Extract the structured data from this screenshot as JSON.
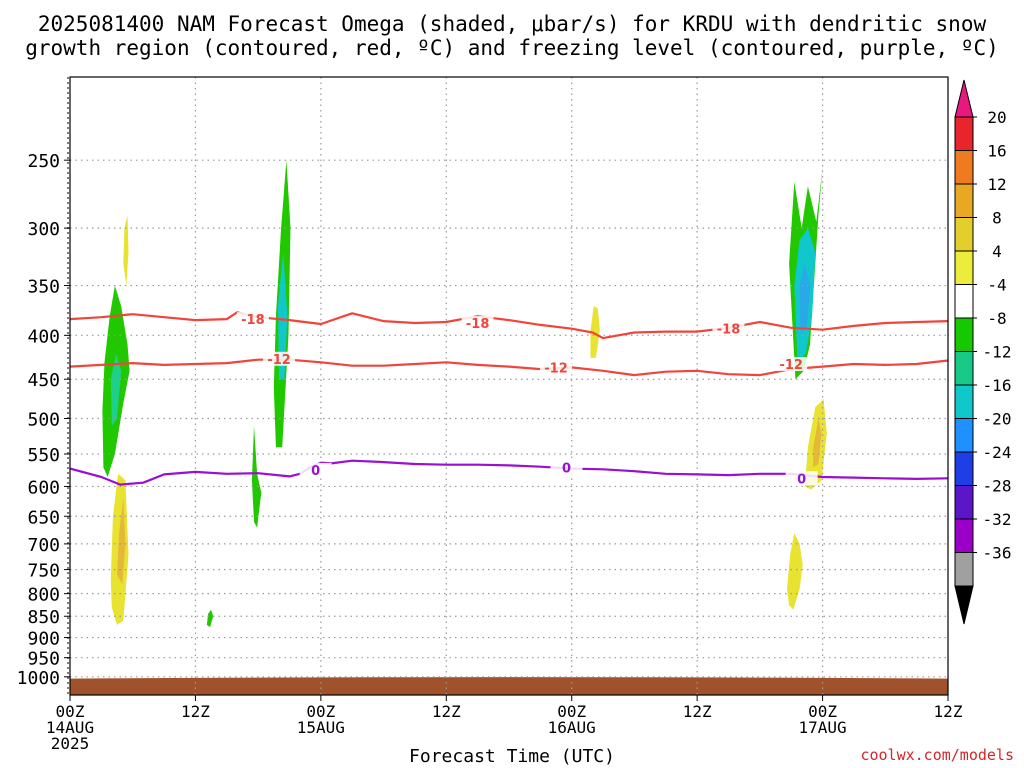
{
  "title_line1": "2025081400 NAM Forecast Omega (shaded, μbar/s) for KRDU with dendritic snow",
  "title_line2": "growth region (contoured, red, ºC) and freezing level (contoured, purple, ºC)",
  "xlabel": "Forecast Time (UTC)",
  "credit": "coolwx.com/models",
  "colors": {
    "dgz": "#f0443c",
    "freezing": "#9b0fd1",
    "terrain": "#a0522d",
    "grid": "#9a9a9a"
  },
  "chart_data": {
    "type": "heatmap",
    "title": "2025081400 NAM Forecast Omega (shaded, μbar/s) for KRDU with dendritic snow growth region (contoured, red, ºC) and freezing level (contoured, purple, ºC)",
    "xlabel": "Forecast Time (UTC)",
    "ylabel": "",
    "x_range_hours": [
      0,
      84
    ],
    "y_range_hPa": [
      1050,
      200
    ],
    "y_scale": "log",
    "grid": true,
    "x_ticks": [
      {
        "h": 0,
        "l1": "00Z",
        "l2": "14AUG",
        "l3": "2025"
      },
      {
        "h": 12,
        "l1": "12Z",
        "l2": "",
        "l3": ""
      },
      {
        "h": 24,
        "l1": "00Z",
        "l2": "15AUG",
        "l3": ""
      },
      {
        "h": 36,
        "l1": "12Z",
        "l2": "",
        "l3": ""
      },
      {
        "h": 48,
        "l1": "00Z",
        "l2": "16AUG",
        "l3": ""
      },
      {
        "h": 60,
        "l1": "12Z",
        "l2": "",
        "l3": ""
      },
      {
        "h": 72,
        "l1": "00Z",
        "l2": "17AUG",
        "l3": ""
      },
      {
        "h": 84,
        "l1": "12Z",
        "l2": "",
        "l3": ""
      }
    ],
    "y_ticks": [
      250,
      300,
      350,
      400,
      450,
      500,
      550,
      600,
      650,
      700,
      750,
      800,
      850,
      900,
      950,
      1000
    ],
    "contours": [
      {
        "name": "-18",
        "color": "#f0443c",
        "x": [
          0,
          3,
          6,
          9,
          12,
          15,
          16,
          18,
          21,
          24,
          27,
          30,
          33,
          36,
          39,
          42,
          45,
          48,
          50,
          51,
          54,
          57,
          60,
          63,
          66,
          69,
          72,
          75,
          78,
          81,
          84
        ],
        "y": [
          383,
          381,
          378,
          381,
          384,
          383,
          376,
          381,
          384,
          388,
          377,
          385,
          387,
          386,
          380,
          384,
          389,
          393,
          397,
          403,
          397,
          396,
          396,
          392,
          386,
          392,
          394,
          390,
          387,
          386,
          385
        ],
        "labels": [
          {
            "text": "-18",
            "x": 17.5,
            "y": 383
          },
          {
            "text": "-18",
            "x": 39,
            "y": 387
          },
          {
            "text": "-18",
            "x": 63,
            "y": 393
          }
        ]
      },
      {
        "name": "-12",
        "color": "#f0443c",
        "x": [
          0,
          3,
          6,
          9,
          12,
          15,
          18,
          21,
          24,
          27,
          30,
          33,
          36,
          39,
          42,
          45,
          48,
          51,
          54,
          57,
          60,
          63,
          66,
          69,
          72,
          75,
          78,
          81,
          84
        ],
        "y": [
          435,
          433,
          431,
          433,
          432,
          431,
          427,
          427,
          430,
          434,
          434,
          432,
          430,
          433,
          435,
          438,
          436,
          440,
          445,
          441,
          440,
          444,
          445,
          438,
          435,
          432,
          433,
          432,
          428
        ],
        "labels": [
          {
            "text": "-12",
            "x": 20,
            "y": 426
          },
          {
            "text": "-12",
            "x": 46.5,
            "y": 436
          },
          {
            "text": "-12",
            "x": 69,
            "y": 432
          }
        ]
      },
      {
        "name": "0",
        "color": "#9b0fd1",
        "x": [
          0,
          3,
          4.8,
          7,
          9,
          12,
          15,
          18,
          21,
          22,
          23,
          24,
          25,
          27,
          30,
          33,
          36,
          39,
          42,
          45,
          48,
          51,
          54,
          57,
          60,
          63,
          66,
          69,
          72,
          75,
          78,
          81,
          84
        ],
        "y": [
          572,
          585,
          597,
          594,
          581,
          577,
          580,
          579,
          584,
          580,
          570,
          563,
          564,
          560,
          562,
          565,
          566,
          566,
          567,
          569,
          572,
          573,
          576,
          580,
          581,
          582,
          580,
          580,
          585,
          586,
          587,
          588,
          587
        ],
        "labels": [
          {
            "text": "0",
            "x": 23.5,
            "y": 574
          },
          {
            "text": "0",
            "x": 47.5,
            "y": 570
          },
          {
            "text": "0",
            "x": 70,
            "y": 587
          }
        ]
      }
    ],
    "shaded": [
      {
        "value": ">4",
        "color": "#e8e230",
        "x": [
          4,
          4.5,
          5.1,
          5.6,
          5.3,
          4.6,
          4.1,
          3.9
        ],
        "y": [
          830,
          870,
          860,
          720,
          590,
          580,
          650,
          770
        ]
      },
      {
        "value": ">8",
        "color": "#e5b83a",
        "x": [
          4.5,
          5,
          5.3,
          5.1,
          4.7
        ],
        "y": [
          760,
          780,
          700,
          620,
          680
        ]
      },
      {
        "value": ">4",
        "color": "#e8e230",
        "x": [
          5.2,
          5.5,
          5.6,
          5.4,
          5.1
        ],
        "y": [
          300,
          290,
          320,
          350,
          330
        ]
      },
      {
        "value": "<-4",
        "color": "#21c800",
        "x": [
          3.2,
          3.6,
          4.3,
          5.1,
          5.7,
          5.5,
          4.9,
          4.3,
          3.8,
          3.3,
          3.1
        ],
        "y": [
          570,
          585,
          550,
          480,
          440,
          410,
          370,
          350,
          380,
          430,
          490
        ]
      },
      {
        "value": "<-8",
        "color": "#1ed08a",
        "x": [
          4,
          4.5,
          4.9,
          4.4,
          3.9
        ],
        "y": [
          510,
          500,
          440,
          420,
          450
        ]
      },
      {
        "value": "<-4",
        "color": "#21c800",
        "x": [
          19.7,
          20.3,
          20.9,
          21.1,
          20.7,
          20.2,
          19.7,
          19.5
        ],
        "y": [
          540,
          540,
          400,
          300,
          250,
          300,
          380,
          460
        ]
      },
      {
        "value": "<-12",
        "color": "#10c8cc",
        "x": [
          20,
          20.5,
          20.8,
          20.4,
          19.9
        ],
        "y": [
          450,
          450,
          380,
          320,
          370
        ]
      },
      {
        "value": "<-4",
        "color": "#21c800",
        "x": [
          17.6,
          17.9,
          18.3,
          17.9,
          17.6,
          17.4
        ],
        "y": [
          660,
          670,
          610,
          580,
          510,
          590
        ]
      },
      {
        "value": "<-4",
        "color": "#21c800",
        "x": [
          13.1,
          13.4,
          13.7,
          13.5,
          13.2
        ],
        "y": [
          870,
          875,
          850,
          835,
          845
        ]
      },
      {
        "value": ">4",
        "color": "#e8e230",
        "x": [
          49.8,
          50.3,
          50.7,
          50.5,
          50.1,
          49.8
        ],
        "y": [
          425,
          425,
          395,
          372,
          370,
          395
        ]
      },
      {
        "value": "<-4",
        "color": "#21c800",
        "x": [
          69.4,
          70.2,
          70.8,
          71.6,
          72,
          71.4,
          70.6,
          70,
          69.3,
          68.8
        ],
        "y": [
          450,
          440,
          410,
          290,
          255,
          295,
          268,
          300,
          265,
          330
        ]
      },
      {
        "value": "<-12",
        "color": "#10c8cc",
        "x": [
          69.6,
          70.4,
          71,
          71.3,
          70.6,
          69.8,
          69.3
        ],
        "y": [
          430,
          420,
          380,
          320,
          300,
          310,
          350
        ]
      },
      {
        "value": "<-16",
        "color": "#2aa8e8",
        "x": [
          69.9,
          70.5,
          70.8,
          70.3,
          69.8
        ],
        "y": [
          400,
          390,
          350,
          330,
          350
        ]
      },
      {
        "value": ">4",
        "color": "#e8e230",
        "x": [
          70.3,
          70.9,
          71.9,
          72.4,
          72.1,
          71.3,
          70.6
        ],
        "y": [
          600,
          605,
          590,
          520,
          475,
          485,
          540
        ]
      },
      {
        "value": ">8",
        "color": "#e5b83a",
        "x": [
          71.1,
          71.6,
          71.9,
          71.6,
          71.1
        ],
        "y": [
          570,
          565,
          520,
          500,
          540
        ]
      },
      {
        "value": ">4",
        "color": "#e8e230",
        "x": [
          68.8,
          69.2,
          69.8,
          70.1,
          69.8,
          69.3,
          68.9,
          68.6
        ],
        "y": [
          825,
          835,
          790,
          740,
          700,
          680,
          720,
          790
        ]
      }
    ],
    "terrain": {
      "color": "#a0522d",
      "top_hPa": 1005
    },
    "colorbar": {
      "ticks": [
        "20",
        "16",
        "12",
        "8",
        "4",
        "-4",
        "-8",
        "-12",
        "-16",
        "-20",
        "-24",
        "-28",
        "-32",
        "-36"
      ],
      "colors": [
        "#e8242d",
        "#ef7a1f",
        "#e8a823",
        "#e2cf2b",
        "#ecec3c",
        "#ffffff",
        "#16c800",
        "#19c987",
        "#10c8cc",
        "#1e90ff",
        "#1e3fe6",
        "#5a16c8",
        "#9b00c8",
        "#a0a0a0"
      ],
      "top_color": "#e8187e",
      "bottom_color": "#000000"
    }
  }
}
